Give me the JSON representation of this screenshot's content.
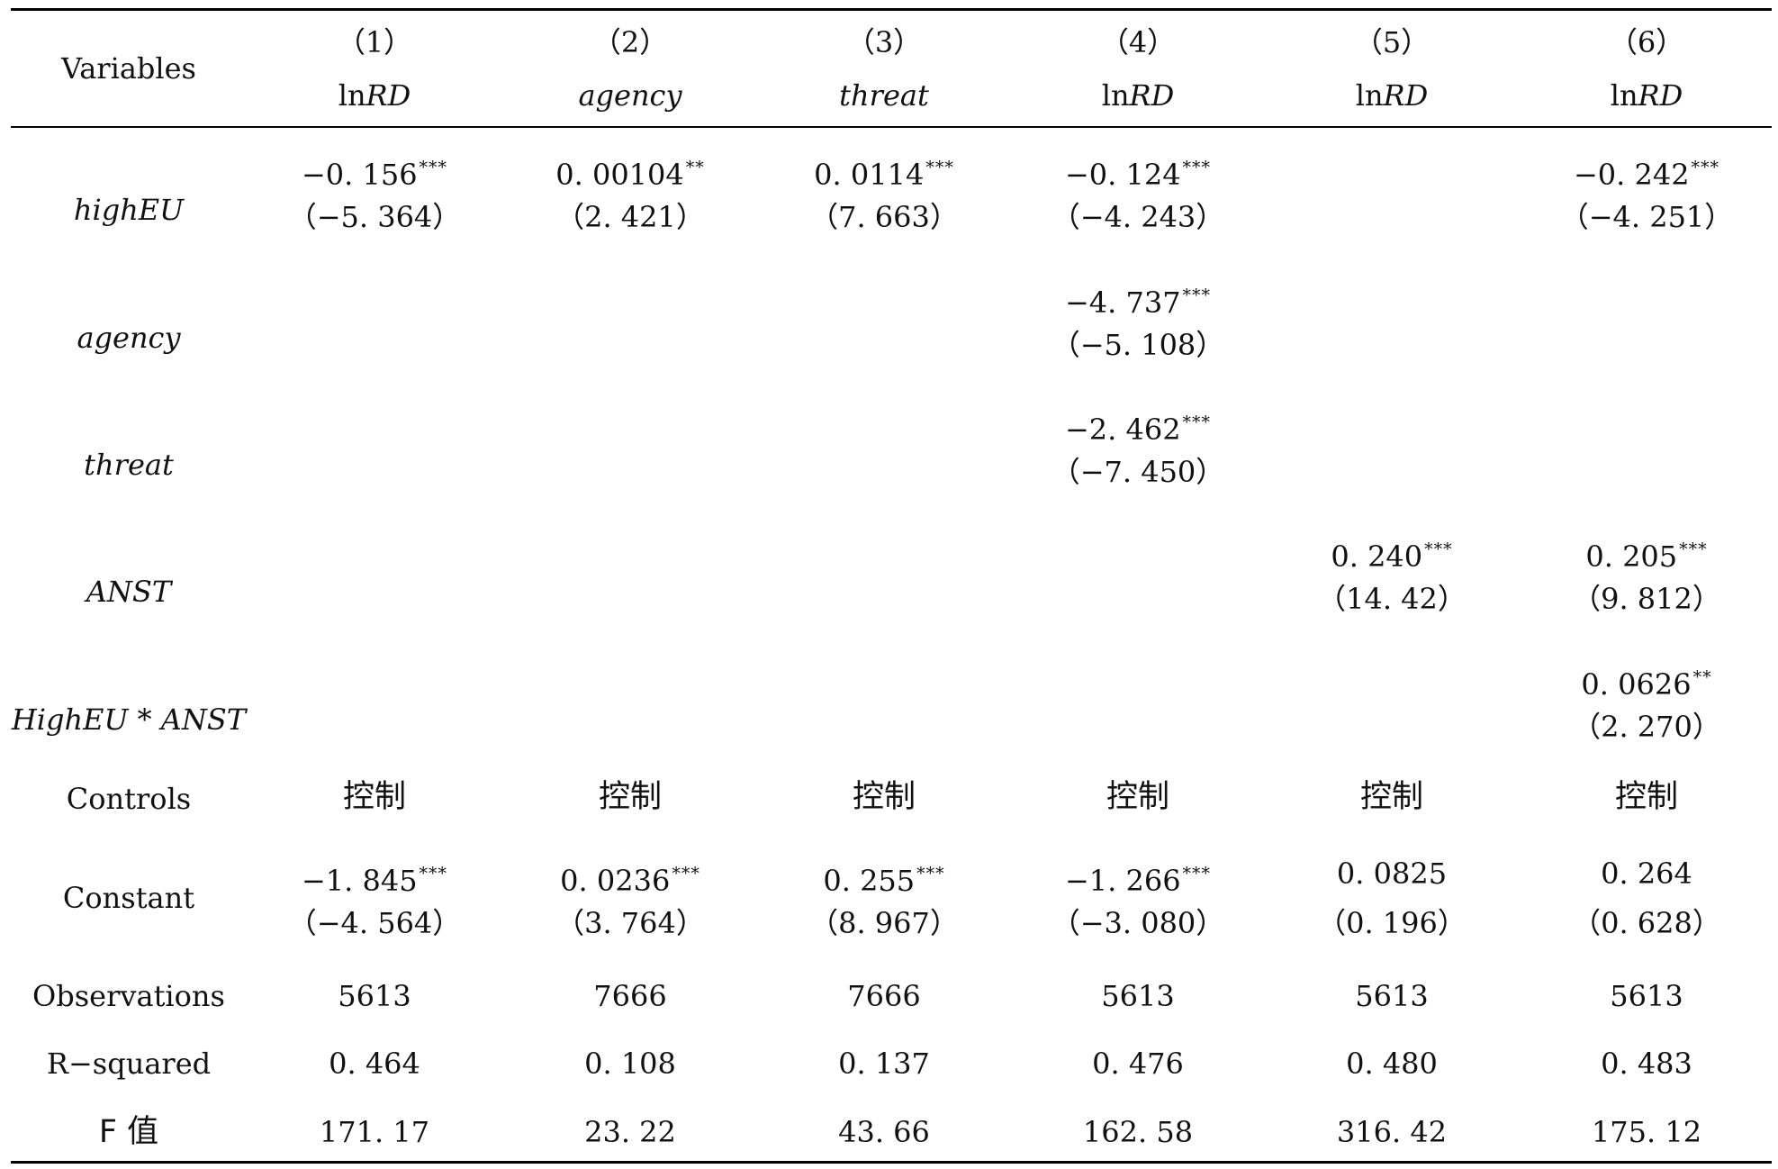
{
  "header": {
    "variables_label": "Variables",
    "columns": [
      {
        "num": "（1）",
        "dv_prefix": "ln",
        "dv_italic": "RD"
      },
      {
        "num": "（2）",
        "dv_prefix": "",
        "dv_italic": "agency"
      },
      {
        "num": "（3）",
        "dv_prefix": "",
        "dv_italic": "threat"
      },
      {
        "num": "（4）",
        "dv_prefix": "ln",
        "dv_italic": "RD"
      },
      {
        "num": "（5）",
        "dv_prefix": "ln",
        "dv_italic": "RD"
      },
      {
        "num": "（6）",
        "dv_prefix": "ln",
        "dv_italic": "RD"
      }
    ]
  },
  "rows": {
    "higheu": {
      "label": "highEU",
      "cells": [
        {
          "coef": "−0. 156",
          "stars": "***",
          "t": "（−5. 364）"
        },
        {
          "coef": "0. 00104",
          "stars": "**",
          "t": "（2. 421）"
        },
        {
          "coef": "0. 0114",
          "stars": "***",
          "t": "（7. 663）"
        },
        {
          "coef": "−0. 124",
          "stars": "***",
          "t": "（−4. 243）"
        },
        {
          "coef": "",
          "stars": "",
          "t": ""
        },
        {
          "coef": "−0. 242",
          "stars": "***",
          "t": "（−4. 251）"
        }
      ]
    },
    "agency": {
      "label": "agency",
      "cells": [
        {
          "coef": "",
          "stars": "",
          "t": ""
        },
        {
          "coef": "",
          "stars": "",
          "t": ""
        },
        {
          "coef": "",
          "stars": "",
          "t": ""
        },
        {
          "coef": "−4. 737",
          "stars": "***",
          "t": "（−5. 108）"
        },
        {
          "coef": "",
          "stars": "",
          "t": ""
        },
        {
          "coef": "",
          "stars": "",
          "t": ""
        }
      ]
    },
    "threat": {
      "label": "threat",
      "cells": [
        {
          "coef": "",
          "stars": "",
          "t": ""
        },
        {
          "coef": "",
          "stars": "",
          "t": ""
        },
        {
          "coef": "",
          "stars": "",
          "t": ""
        },
        {
          "coef": "−2. 462",
          "stars": "***",
          "t": "（−7. 450）"
        },
        {
          "coef": "",
          "stars": "",
          "t": ""
        },
        {
          "coef": "",
          "stars": "",
          "t": ""
        }
      ]
    },
    "anst": {
      "label": "ANST",
      "cells": [
        {
          "coef": "",
          "stars": "",
          "t": ""
        },
        {
          "coef": "",
          "stars": "",
          "t": ""
        },
        {
          "coef": "",
          "stars": "",
          "t": ""
        },
        {
          "coef": "",
          "stars": "",
          "t": ""
        },
        {
          "coef": "0. 240",
          "stars": "***",
          "t": "（14. 42）"
        },
        {
          "coef": "0. 205",
          "stars": "***",
          "t": "（9. 812）"
        }
      ]
    },
    "interaction": {
      "label": "HighEU * ANST",
      "cells": [
        {
          "coef": "",
          "stars": "",
          "t": ""
        },
        {
          "coef": "",
          "stars": "",
          "t": ""
        },
        {
          "coef": "",
          "stars": "",
          "t": ""
        },
        {
          "coef": "",
          "stars": "",
          "t": ""
        },
        {
          "coef": "",
          "stars": "",
          "t": ""
        },
        {
          "coef": "0. 0626",
          "stars": "**",
          "t": "（2. 270）"
        }
      ]
    },
    "controls": {
      "label": "Controls",
      "values": [
        "控制",
        "控制",
        "控制",
        "控制",
        "控制",
        "控制"
      ]
    },
    "constant": {
      "label": "Constant",
      "cells": [
        {
          "coef": "−1. 845",
          "stars": "***",
          "t": "（−4. 564）"
        },
        {
          "coef": "0. 0236",
          "stars": "***",
          "t": "（3. 764）"
        },
        {
          "coef": "0. 255",
          "stars": "***",
          "t": "（8. 967）"
        },
        {
          "coef": "−1. 266",
          "stars": "***",
          "t": "（−3. 080）"
        },
        {
          "coef": "0. 0825",
          "stars": "",
          "t": "（0. 196）"
        },
        {
          "coef": "0. 264",
          "stars": "",
          "t": "（0. 628）"
        }
      ]
    },
    "observations": {
      "label": "Observations",
      "values": [
        "5613",
        "7666",
        "7666",
        "5613",
        "5613",
        "5613"
      ]
    },
    "rsquared": {
      "label": "R−squared",
      "values": [
        "0. 464",
        "0. 108",
        "0. 137",
        "0. 476",
        "0. 480",
        "0. 483"
      ]
    },
    "fvalue": {
      "label": "F 值",
      "values": [
        "171. 17",
        "23. 22",
        "43. 66",
        "162. 58",
        "316. 42",
        "175. 12"
      ]
    }
  }
}
